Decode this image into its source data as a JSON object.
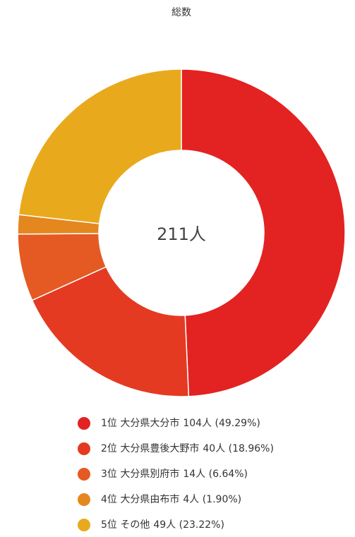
{
  "chart_data": {
    "type": "donut",
    "title": "総数",
    "center_label": "211人",
    "categories": [
      "1位 大分県大分市",
      "2位 大分県豊後大野市",
      "3位 大分県別府市",
      "4位 大分県由布市",
      "5位 その他"
    ],
    "values": [
      104,
      40,
      14,
      4,
      49
    ],
    "value_labels": [
      "104人 (49.29%)",
      "40人 (18.96%)",
      "14人 (6.64%)",
      "4人 (1.90%)",
      "49人 (23.22%)"
    ],
    "colors": [
      "#e32222",
      "#e43a22",
      "#e45a22",
      "#e4871f",
      "#e8aa1c"
    ],
    "legend": "bottom"
  }
}
